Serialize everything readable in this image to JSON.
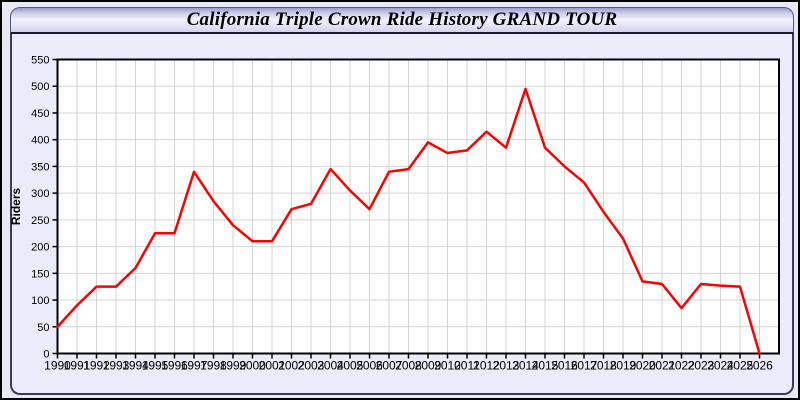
{
  "window": {
    "title": "California Triple Crown Ride History GRAND TOUR"
  },
  "chart_data": {
    "type": "line",
    "title": "California Triple Crown Ride History GRAND TOUR",
    "xlabel": "",
    "ylabel": "Riders",
    "ylim": [
      0,
      550
    ],
    "y_tick_step": 50,
    "grid": true,
    "legend_position": "none",
    "x": [
      1990,
      1991,
      1992,
      1993,
      1994,
      1995,
      1996,
      1997,
      1998,
      1999,
      2000,
      2001,
      2002,
      2003,
      2004,
      2005,
      2006,
      2007,
      2008,
      2009,
      2010,
      2011,
      2012,
      2013,
      2014,
      2015,
      2016,
      2017,
      2018,
      2019,
      2020,
      2021,
      2022,
      2023,
      2024,
      2025,
      2026
    ],
    "series": [
      {
        "name": "Riders",
        "values": [
          50,
          90,
          125,
          125,
          160,
          225,
          225,
          340,
          285,
          240,
          210,
          210,
          270,
          280,
          345,
          305,
          270,
          340,
          345,
          395,
          375,
          380,
          415,
          385,
          495,
          385,
          350,
          320,
          265,
          215,
          135,
          130,
          85,
          130,
          127,
          125,
          0
        ]
      }
    ]
  },
  "colors": {
    "line": "#ff0000",
    "plot_background": "#ffffff",
    "gridline": "#d4d4d4",
    "axis_border": "#000000",
    "panel_background": "#ebebf9",
    "label_text": "#000000"
  }
}
